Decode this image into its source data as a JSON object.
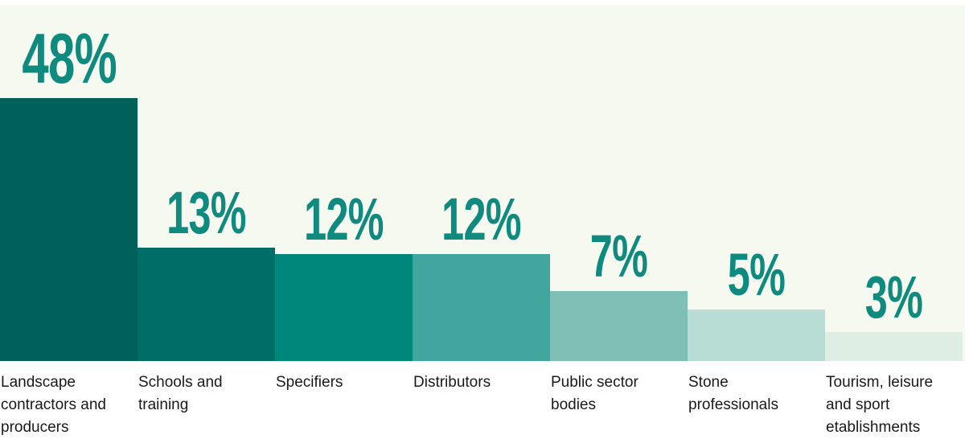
{
  "chart_data": {
    "type": "bar",
    "title": "",
    "xlabel": "",
    "ylabel": "",
    "categories": [
      "Landscape contractors and producers",
      "Schools and training",
      "Specifiers",
      "Distributors",
      "Public sector bodies",
      "Stone professionals",
      "Tourism, leisure and sport etablishments"
    ],
    "values": [
      48,
      13,
      12,
      12,
      7,
      5,
      3
    ],
    "labels": [
      "48%",
      "13%",
      "12%",
      "12%",
      "7%",
      "5%",
      "3%"
    ],
    "colors": [
      "#00605a",
      "#006d66",
      "#00877c",
      "#40a69e",
      "#7fc0b6",
      "#b8ddd4",
      "#dfeee5"
    ],
    "label_color": "#0e8a7e",
    "grid": false
  }
}
